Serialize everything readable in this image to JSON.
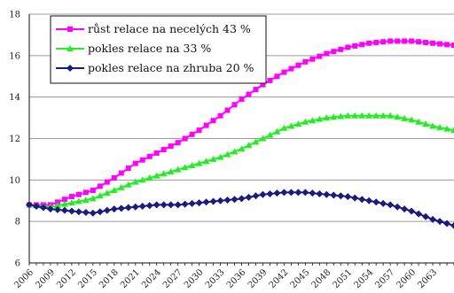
{
  "chart_data": {
    "type": "line",
    "title": "",
    "xlabel": "",
    "ylabel": "",
    "ylim": [
      6,
      18
    ],
    "y_ticks": [
      6,
      8,
      10,
      12,
      14,
      16,
      18
    ],
    "x_ticks": [
      "2006",
      "2009",
      "2012",
      "2015",
      "2018",
      "2021",
      "2024",
      "2027",
      "2030",
      "2033",
      "2036",
      "2039",
      "2042",
      "2045",
      "2048",
      "2051",
      "2054",
      "2057",
      "2060",
      "2063"
    ],
    "x_range": [
      2006,
      2066
    ],
    "grid": "horizontal",
    "legend_position": "top-left",
    "series": [
      {
        "name": "růst relace na necelých 43 %",
        "color": "#ff00ff",
        "marker": "square",
        "x": [
          2006,
          2009,
          2012,
          2015,
          2018,
          2021,
          2024,
          2027,
          2030,
          2033,
          2036,
          2039,
          2042,
          2045,
          2048,
          2051,
          2054,
          2057,
          2060,
          2063,
          2066
        ],
        "values": [
          8.8,
          8.8,
          9.2,
          9.5,
          10.1,
          10.8,
          11.3,
          11.8,
          12.4,
          13.1,
          13.9,
          14.6,
          15.2,
          15.7,
          16.1,
          16.4,
          16.6,
          16.7,
          16.7,
          16.6,
          16.5
        ]
      },
      {
        "name": "pokles relace na 33 %",
        "color": "#22ee22",
        "marker": "triangle",
        "x": [
          2006,
          2009,
          2012,
          2015,
          2018,
          2021,
          2024,
          2027,
          2030,
          2033,
          2036,
          2039,
          2042,
          2045,
          2048,
          2051,
          2054,
          2057,
          2060,
          2063,
          2066
        ],
        "values": [
          8.8,
          8.7,
          8.9,
          9.1,
          9.5,
          9.9,
          10.2,
          10.5,
          10.8,
          11.1,
          11.5,
          12.0,
          12.5,
          12.8,
          13.0,
          13.1,
          13.1,
          13.1,
          12.9,
          12.6,
          12.4
        ]
      },
      {
        "name": "pokles relace na zhruba 20 %",
        "color": "#1a1a80",
        "marker": "diamond",
        "x": [
          2006,
          2009,
          2012,
          2015,
          2018,
          2021,
          2024,
          2027,
          2030,
          2033,
          2036,
          2039,
          2042,
          2045,
          2048,
          2051,
          2054,
          2057,
          2060,
          2063,
          2066
        ],
        "values": [
          8.8,
          8.6,
          8.5,
          8.4,
          8.6,
          8.7,
          8.8,
          8.8,
          8.9,
          9.0,
          9.1,
          9.3,
          9.4,
          9.4,
          9.3,
          9.2,
          9.0,
          8.8,
          8.5,
          8.1,
          7.8
        ]
      }
    ]
  }
}
